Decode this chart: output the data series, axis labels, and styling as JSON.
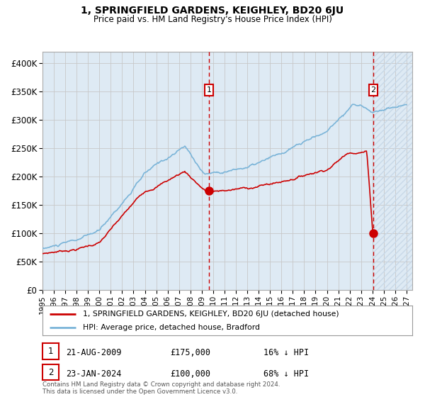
{
  "title": "1, SPRINGFIELD GARDENS, KEIGHLEY, BD20 6JU",
  "subtitle": "Price paid vs. HM Land Registry's House Price Index (HPI)",
  "ylim": [
    0,
    420000
  ],
  "xlim_start": 1995.0,
  "xlim_end": 2027.5,
  "yticks": [
    0,
    50000,
    100000,
    150000,
    200000,
    250000,
    300000,
    350000,
    400000
  ],
  "ytick_labels": [
    "£0",
    "£50K",
    "£100K",
    "£150K",
    "£200K",
    "£250K",
    "£300K",
    "£350K",
    "£400K"
  ],
  "xticks": [
    1995,
    1996,
    1997,
    1998,
    1999,
    2000,
    2001,
    2002,
    2003,
    2004,
    2005,
    2006,
    2007,
    2008,
    2009,
    2010,
    2011,
    2012,
    2013,
    2014,
    2015,
    2016,
    2017,
    2018,
    2019,
    2020,
    2021,
    2022,
    2023,
    2024,
    2025,
    2026,
    2027
  ],
  "sale1_date": 2009.64,
  "sale1_price": 175000,
  "sale1_label": "1",
  "sale1_text": "21-AUG-2009",
  "sale1_amount": "£175,000",
  "sale1_hpi": "16% ↓ HPI",
  "sale2_date": 2024.07,
  "sale2_price": 100000,
  "sale2_label": "2",
  "sale2_text": "23-JAN-2024",
  "sale2_amount": "£100,000",
  "sale2_hpi": "68% ↓ HPI",
  "hpi_color": "#7ab4d8",
  "price_color": "#cc0000",
  "shade_color": "#deeaf4",
  "hatch_color": "#c8d8e8",
  "grid_color": "#c8c8c8",
  "bg_color": "#ffffff",
  "legend_label_price": "1, SPRINGFIELD GARDENS, KEIGHLEY, BD20 6JU (detached house)",
  "legend_label_hpi": "HPI: Average price, detached house, Bradford",
  "footnote": "Contains HM Land Registry data © Crown copyright and database right 2024.\nThis data is licensed under the Open Government Licence v3.0."
}
